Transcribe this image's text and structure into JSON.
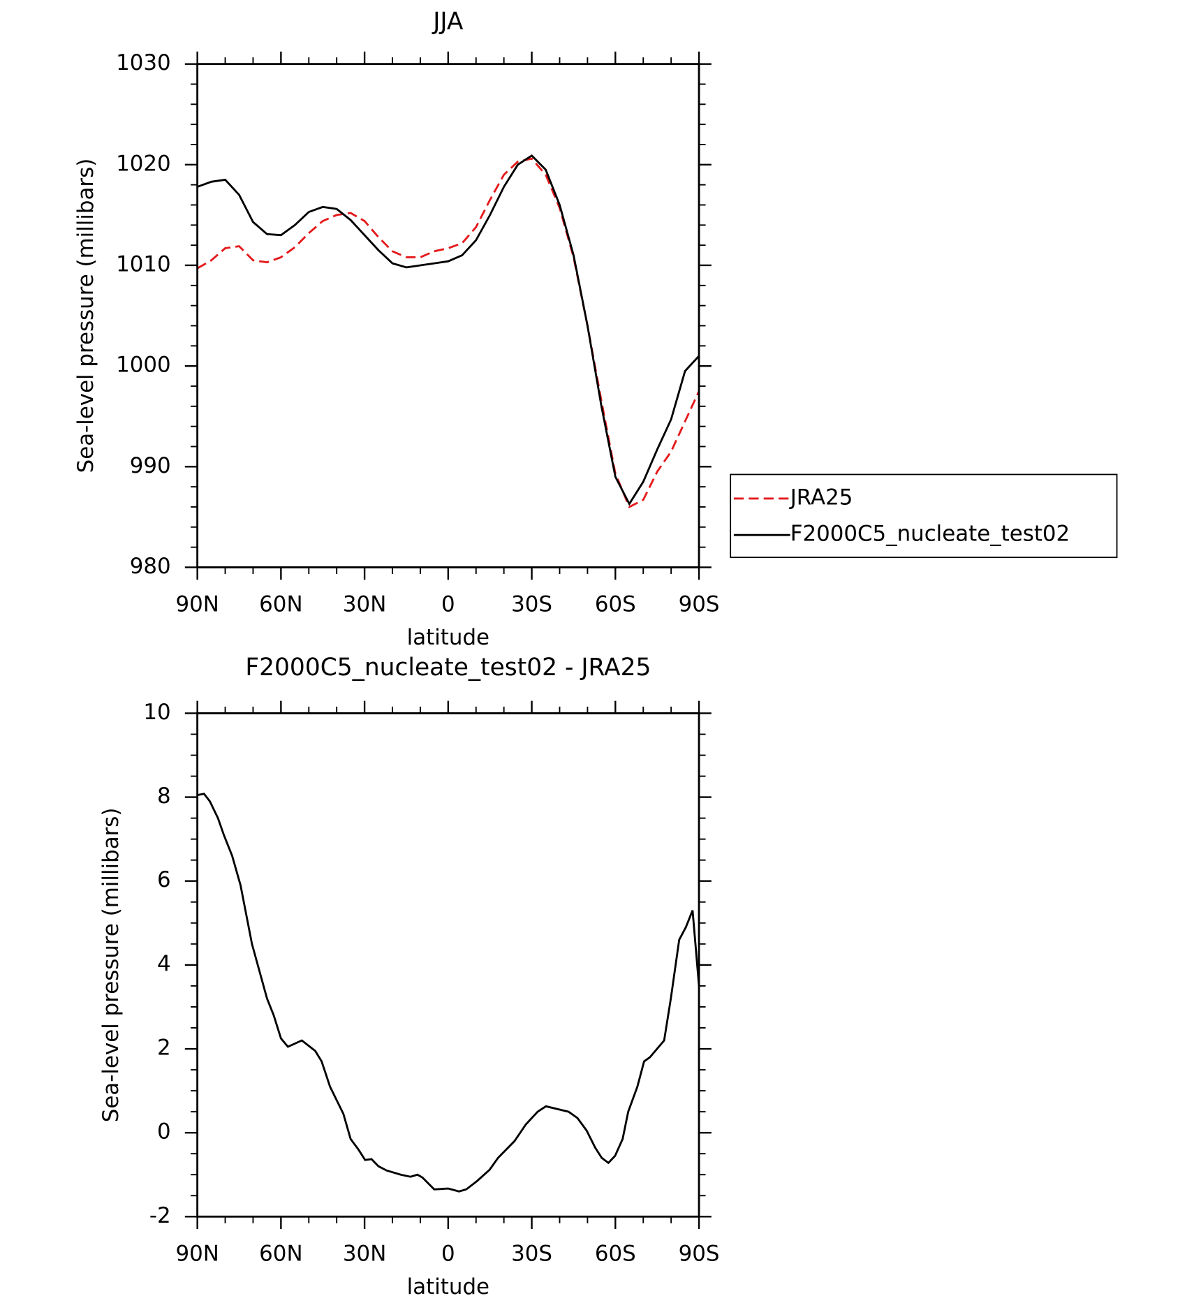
{
  "chart_data": [
    {
      "type": "line",
      "title": "JJA",
      "xlabel": "latitude",
      "ylabel": "Sea-level pressure (millibars)",
      "x": [
        90,
        85,
        80,
        75,
        70,
        65,
        60,
        55,
        50,
        45,
        40,
        35,
        30,
        25,
        20,
        15,
        10,
        5,
        0,
        -5,
        -10,
        -15,
        -20,
        -25,
        -30,
        -35,
        -40,
        -45,
        -50,
        -55,
        -60,
        -65,
        -70,
        -75,
        -80,
        -85,
        -90
      ],
      "series": [
        {
          "name": "JRA25",
          "color": "#e41a1c",
          "linestyle": "dashed",
          "values": [
            1009.7,
            1010.5,
            1011.7,
            1011.9,
            1010.5,
            1010.3,
            1010.8,
            1011.8,
            1013.2,
            1014.4,
            1015,
            1015.2,
            1014.4,
            1012.8,
            1011.4,
            1010.8,
            1010.8,
            1011.4,
            1011.7,
            1012.2,
            1013.8,
            1016.5,
            1019,
            1020.3,
            1020.6,
            1019,
            1015.7,
            1010.8,
            1004,
            996.5,
            989.3,
            986,
            986.7,
            989.5,
            991.5,
            994.5,
            997.5
          ]
        },
        {
          "name": "F2000C5_nucleate_test02",
          "color": "#000000",
          "linestyle": "solid",
          "values": [
            1017.8,
            1018.3,
            1018.5,
            1017,
            1014.3,
            1013.1,
            1013,
            1014,
            1015.3,
            1015.8,
            1015.6,
            1014.5,
            1013,
            1011.5,
            1010.2,
            1009.8,
            1010,
            1010.2,
            1010.4,
            1011,
            1012.5,
            1015,
            1017.8,
            1020,
            1020.9,
            1019.5,
            1016,
            1011,
            1004,
            996,
            989,
            986.3,
            988.5,
            991.7,
            994.7,
            999.5,
            1001
          ]
        }
      ],
      "xlim": [
        90,
        -90
      ],
      "xticks": [
        {
          "value": 90,
          "label": "90N"
        },
        {
          "value": 60,
          "label": "60N"
        },
        {
          "value": 30,
          "label": "30N"
        },
        0,
        {
          "value": -30,
          "label": "30S"
        },
        {
          "value": -60,
          "label": "60S"
        },
        {
          "value": -90,
          "label": "90S"
        }
      ],
      "ylim": [
        980,
        1030
      ],
      "yticks": [
        980,
        990,
        1000,
        1010,
        1020,
        1030
      ],
      "legend": "outside right",
      "grid": false
    },
    {
      "type": "line",
      "title": "F2000C5_nucleate_test02 - JRA25",
      "xlabel": "latitude",
      "ylabel": "Sea-level pressure (millibars)",
      "x": [
        90,
        87.6,
        85.5,
        82.6,
        80.5,
        77.5,
        74.5,
        70.4,
        65,
        62.6,
        60,
        57.5,
        52.5,
        47.7,
        45.4,
        42.4,
        37.6,
        35,
        32.2,
        29.8,
        27.5,
        25,
        22.1,
        17,
        13.5,
        11,
        9.2,
        5,
        0,
        -3.9,
        -6.5,
        -10.4,
        -14.9,
        -17.9,
        -23.8,
        -27.9,
        -32.1,
        -35.1,
        -43.2,
        -46.4,
        -49.7,
        -52.7,
        -55.1,
        -57.5,
        -59.9,
        -62.6,
        -64.6,
        -67.9,
        -70.3,
        -72.4,
        -77.5,
        -79.9,
        -82.9,
        -85.3,
        -87.7,
        -90
      ],
      "values": [
        8.05,
        8.08,
        7.9,
        7.5,
        7.1,
        6.6,
        5.9,
        4.5,
        3.2,
        2.8,
        2.25,
        2.05,
        2.2,
        1.95,
        1.7,
        1.1,
        0.45,
        -0.15,
        -0.4,
        -0.65,
        -0.63,
        -0.8,
        -0.9,
        -1.0,
        -1.05,
        -1.0,
        -1.07,
        -1.35,
        -1.33,
        -1.4,
        -1.35,
        -1.15,
        -0.88,
        -0.6,
        -0.2,
        0.2,
        0.5,
        0.63,
        0.5,
        0.35,
        0.05,
        -0.35,
        -0.6,
        -0.72,
        -0.55,
        -0.15,
        0.5,
        1.1,
        1.7,
        1.8,
        2.2,
        3.2,
        4.6,
        4.9,
        5.3,
        3.5
      ],
      "color": "#000000",
      "linestyle": "solid",
      "xlim": [
        90,
        -90
      ],
      "xticks": [
        {
          "value": 90,
          "label": "90N"
        },
        {
          "value": 60,
          "label": "60N"
        },
        {
          "value": 30,
          "label": "30N"
        },
        0,
        {
          "value": -30,
          "label": "30S"
        },
        {
          "value": -60,
          "label": "60S"
        },
        {
          "value": -90,
          "label": "90S"
        }
      ],
      "ylim": [
        -2,
        10
      ],
      "yticks": [
        -2,
        0,
        2,
        4,
        6,
        8,
        10
      ],
      "grid": false
    }
  ]
}
